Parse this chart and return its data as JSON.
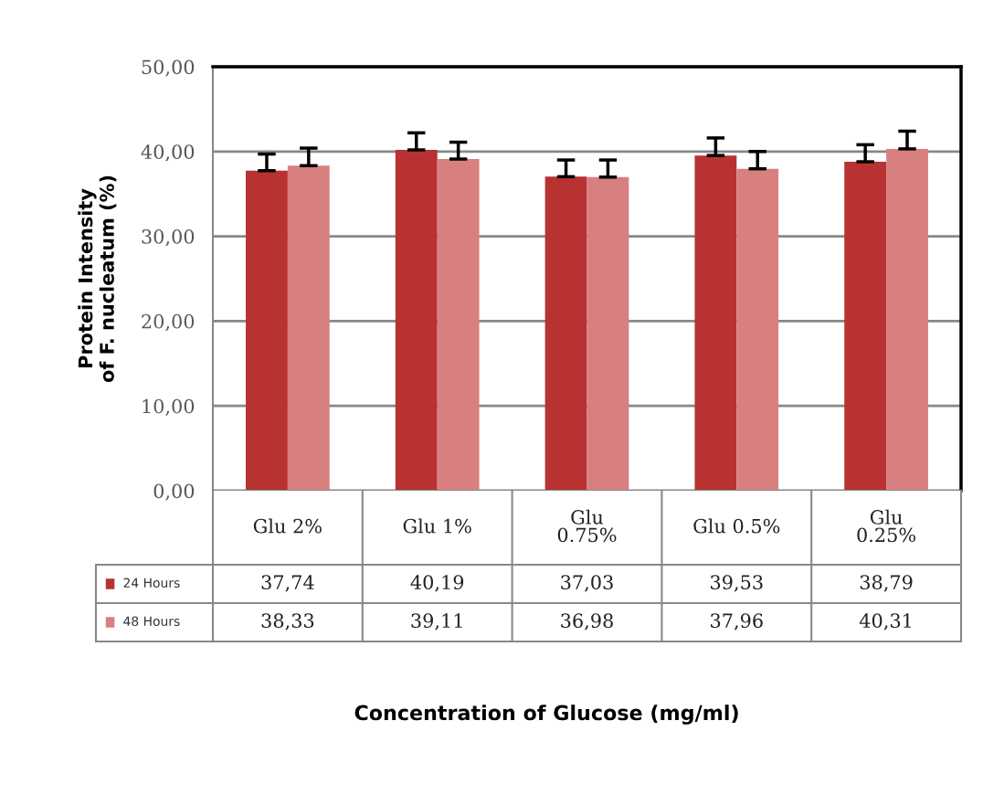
{
  "chart_data": {
    "type": "bar",
    "annotations": [
      "Concentration of Glucose (mg/ml)"
    ],
    "ylabel": "Protein Intensity\nof F. nucleatum (%)",
    "categories": [
      "Glu 2%",
      "Glu 1%",
      "Glu\n0.75%",
      "Glu 0.5%",
      "Glu\n0.25%"
    ],
    "series": [
      {
        "name": "24 Hours",
        "color": "#b83232",
        "values": [
          37.74,
          40.19,
          37.03,
          39.53,
          38.79
        ],
        "value_labels": [
          "37,74",
          "40,19",
          "37,03",
          "39,53",
          "38,79"
        ],
        "errors": [
          [
            37.74,
            39.7
          ],
          [
            40.19,
            42.2
          ],
          [
            37.03,
            39.0
          ],
          [
            39.53,
            41.6
          ],
          [
            38.79,
            40.8
          ]
        ]
      },
      {
        "name": "48 Hours",
        "color": "#d88080",
        "values": [
          38.33,
          39.11,
          36.98,
          37.96,
          40.31
        ],
        "value_labels": [
          "38,33",
          "39,11",
          "36,98",
          "37,96",
          "40,31"
        ],
        "errors": [
          [
            38.33,
            40.4
          ],
          [
            39.11,
            41.1
          ],
          [
            36.98,
            39.0
          ],
          [
            37.96,
            40.0
          ],
          [
            40.31,
            42.4
          ]
        ]
      }
    ],
    "ylim": [
      0,
      50
    ],
    "yticks": [
      {
        "value": 0,
        "label": "0,00"
      },
      {
        "value": 10,
        "label": "10,00"
      },
      {
        "value": 20,
        "label": "20,00"
      },
      {
        "value": 30,
        "label": "30,00"
      },
      {
        "value": 40,
        "label": "40,00"
      },
      {
        "value": 50,
        "label": "50,00"
      }
    ],
    "grid": "y",
    "legend": "bottom"
  }
}
